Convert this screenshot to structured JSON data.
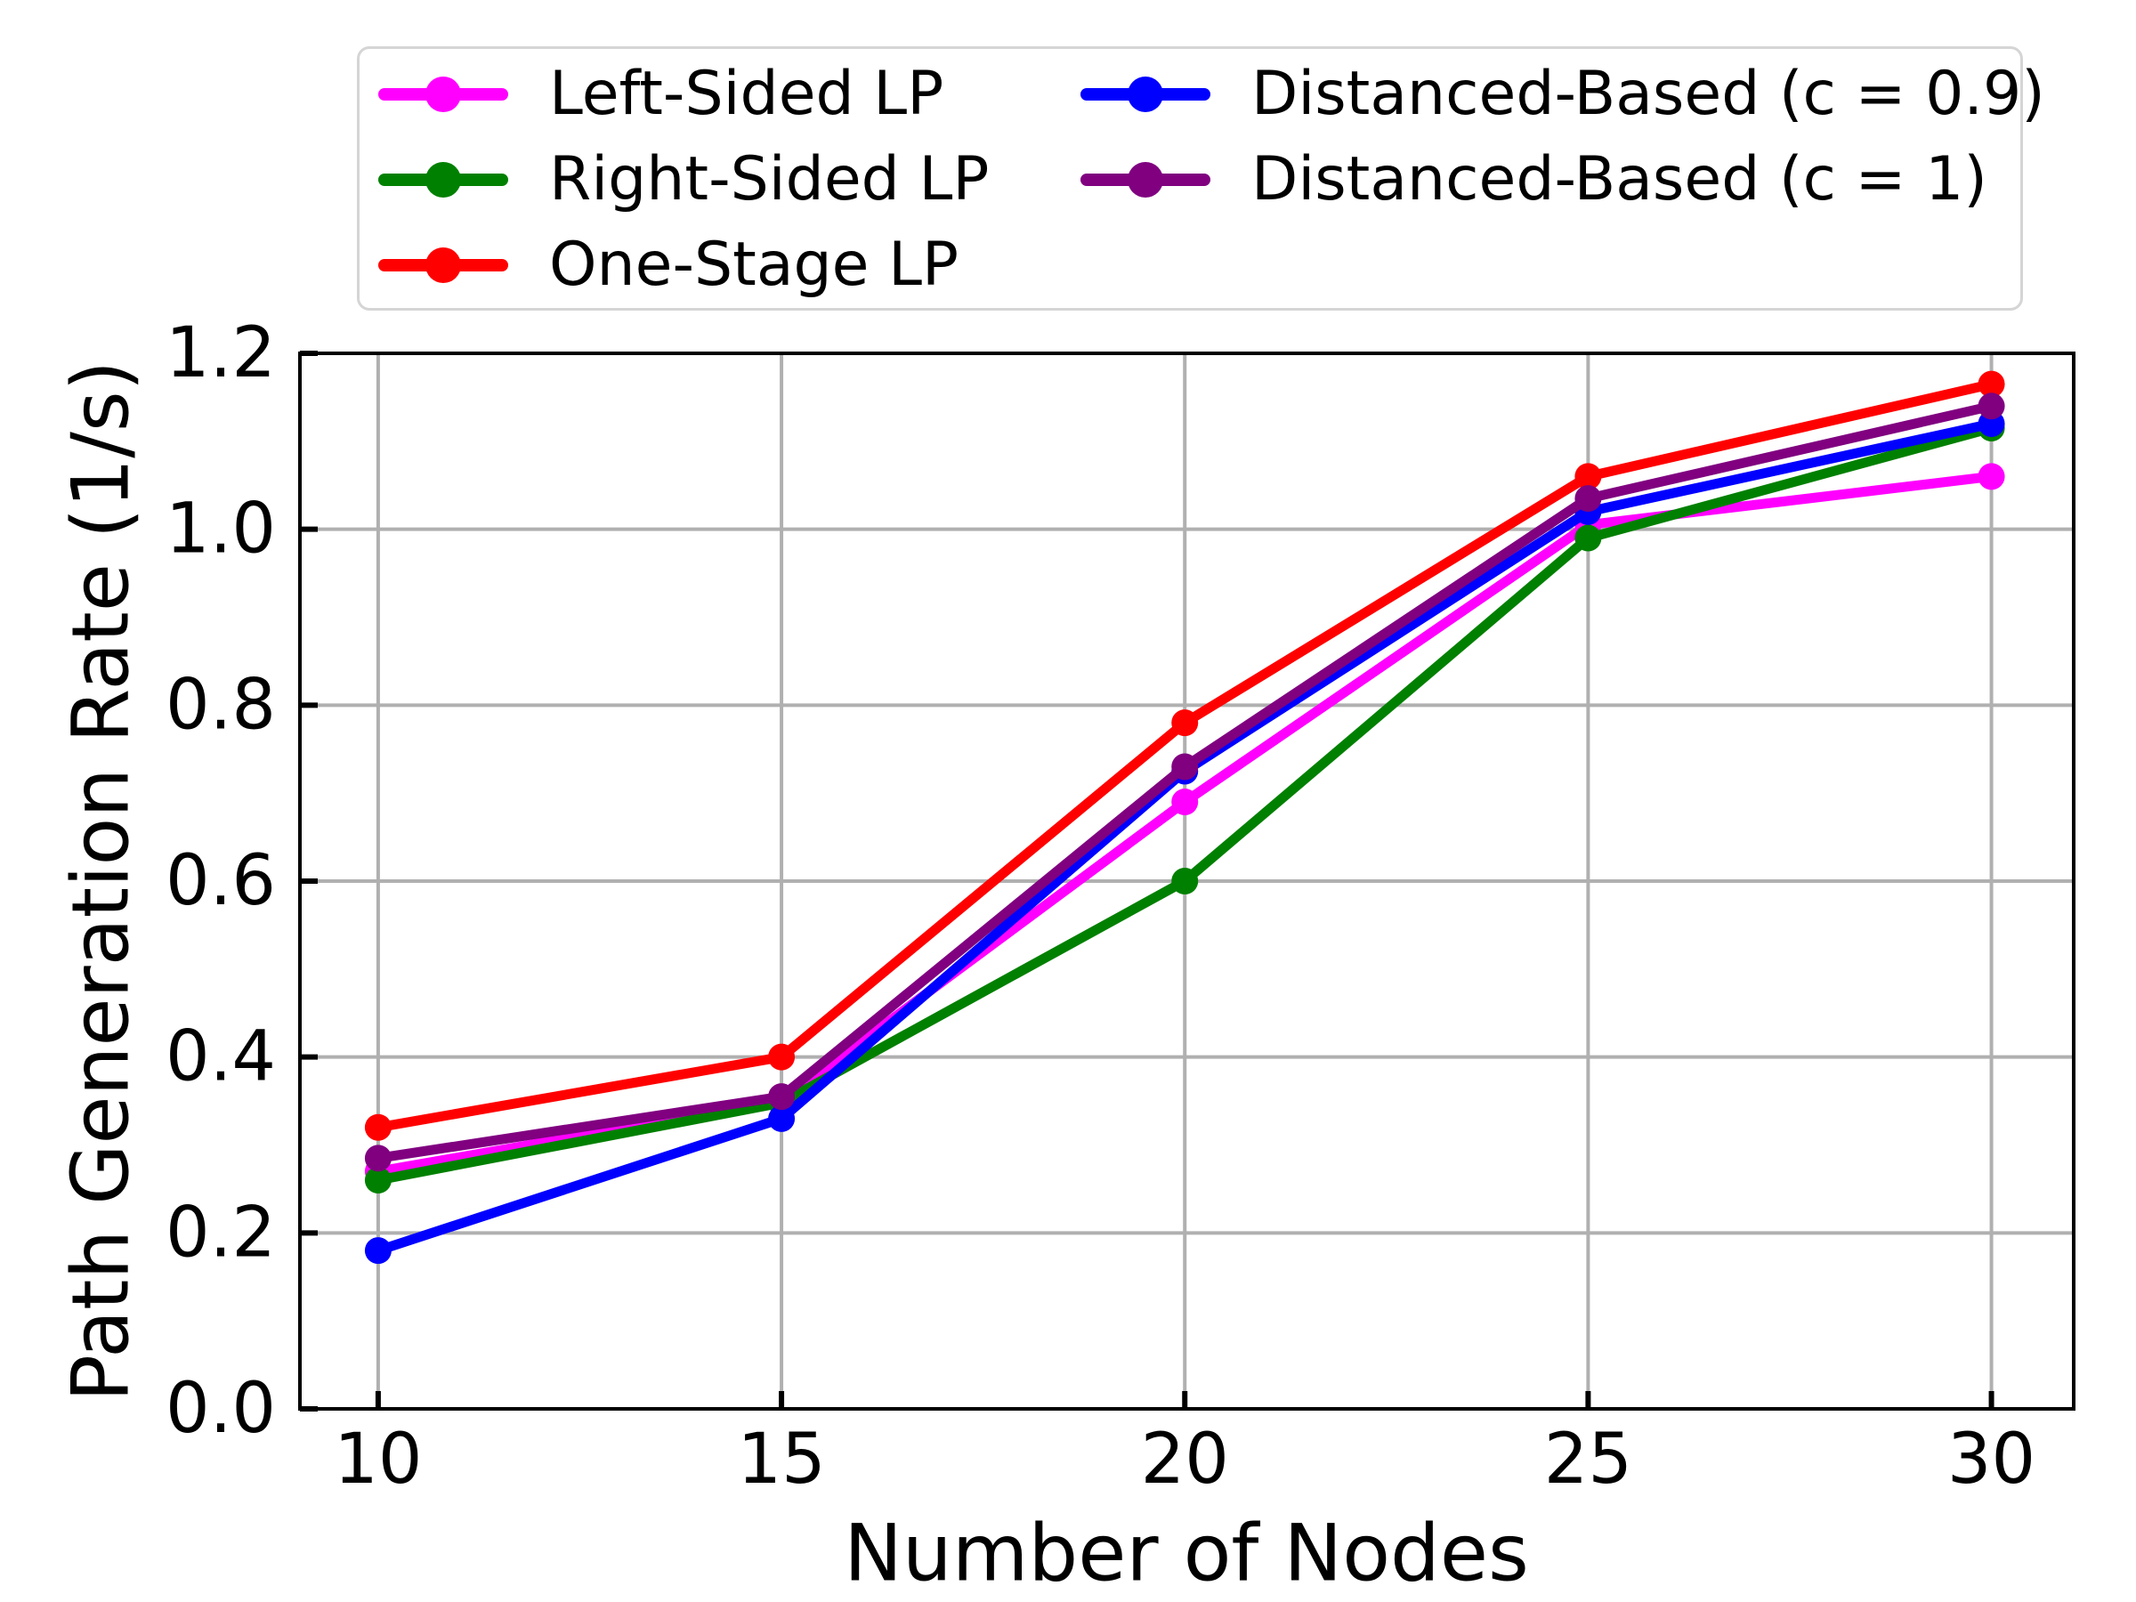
{
  "chart_data": {
    "type": "line",
    "title": "",
    "xlabel": "Number of Nodes",
    "ylabel": "Path Generation Rate (1/s)",
    "x": [
      10,
      15,
      20,
      25,
      30
    ],
    "xtick_labels": [
      "10",
      "15",
      "20",
      "25",
      "30"
    ],
    "ytick_labels": [
      "0.0",
      "0.2",
      "0.4",
      "0.6",
      "0.8",
      "1.0",
      "1.2"
    ],
    "xlim": [
      9.03,
      31.02
    ],
    "ylim": [
      0,
      1.2
    ],
    "grid": true,
    "grid_color": "#b0b0b0",
    "marker": "circle",
    "legend_position": "top, two columns, above plot",
    "series": [
      {
        "name": "Left-Sided LP",
        "color": "#FF00FF",
        "values": [
          0.27,
          0.35,
          0.69,
          1.005,
          1.06
        ]
      },
      {
        "name": "Right-Sided LP",
        "color": "#008000",
        "values": [
          0.26,
          0.348,
          0.6,
          0.99,
          1.115
        ]
      },
      {
        "name": "One-Stage LP",
        "color": "#FF0000",
        "values": [
          0.32,
          0.4,
          0.78,
          1.06,
          1.165
        ]
      },
      {
        "name": "Distanced-Based (c = 0.9)",
        "color": "#0000FF",
        "values": [
          0.18,
          0.33,
          0.725,
          1.02,
          1.12
        ]
      },
      {
        "name": "Distanced-Based (c = 1)",
        "color": "#800080",
        "values": [
          0.285,
          0.355,
          0.73,
          1.035,
          1.14
        ]
      }
    ],
    "legend_columns": [
      [
        0,
        1,
        2
      ],
      [
        3,
        4
      ]
    ]
  }
}
